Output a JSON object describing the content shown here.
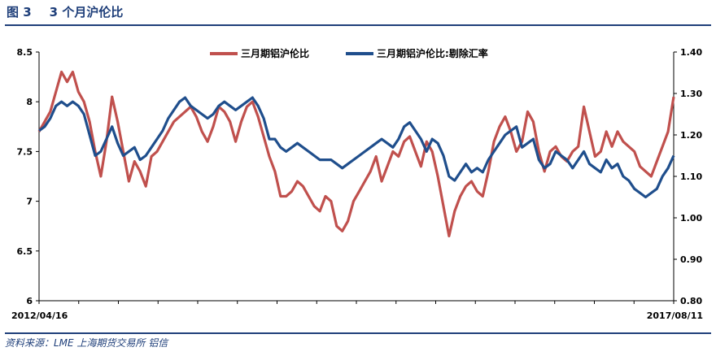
{
  "figure": {
    "label": "图 3",
    "number": "3",
    "title": "个月沪伦比"
  },
  "source": "资料来源：LME   上海期货交易所   铝信",
  "chart_data": {
    "type": "line",
    "x_start": "2012/04/16",
    "x_end": "2017/08/11",
    "left_axis": {
      "ylim": [
        6,
        8.5
      ],
      "ticks": [
        "8.5",
        "8",
        "7.5",
        "7",
        "6.5",
        "6"
      ]
    },
    "right_axis": {
      "ylim": [
        0.8,
        1.4
      ],
      "ticks": [
        "1.40",
        "1.30",
        "1.20",
        "1.10",
        "1.00",
        "0.90",
        "0.80"
      ]
    },
    "legend_position": "top-center",
    "series": [
      {
        "name": "三月期铝沪伦比",
        "axis": "left",
        "color": "#c0504d",
        "values": [
          7.7,
          7.8,
          7.9,
          8.1,
          8.3,
          8.2,
          8.3,
          8.1,
          8.0,
          7.8,
          7.5,
          7.25,
          7.6,
          8.05,
          7.8,
          7.5,
          7.2,
          7.4,
          7.3,
          7.15,
          7.45,
          7.5,
          7.6,
          7.7,
          7.8,
          7.85,
          7.9,
          7.95,
          7.85,
          7.7,
          7.6,
          7.75,
          7.95,
          7.9,
          7.8,
          7.6,
          7.8,
          7.95,
          8.0,
          7.85,
          7.65,
          7.45,
          7.3,
          7.05,
          7.05,
          7.1,
          7.2,
          7.15,
          7.05,
          6.95,
          6.9,
          7.05,
          7.0,
          6.75,
          6.7,
          6.8,
          7.0,
          7.1,
          7.2,
          7.3,
          7.45,
          7.2,
          7.35,
          7.5,
          7.45,
          7.6,
          7.65,
          7.5,
          7.35,
          7.6,
          7.5,
          7.25,
          6.95,
          6.65,
          6.9,
          7.05,
          7.15,
          7.2,
          7.1,
          7.05,
          7.3,
          7.6,
          7.75,
          7.85,
          7.7,
          7.5,
          7.6,
          7.9,
          7.8,
          7.5,
          7.3,
          7.5,
          7.55,
          7.45,
          7.4,
          7.5,
          7.55,
          7.95,
          7.7,
          7.45,
          7.5,
          7.7,
          7.55,
          7.7,
          7.6,
          7.55,
          7.5,
          7.35,
          7.3,
          7.25,
          7.4,
          7.55,
          7.7,
          8.05
        ]
      },
      {
        "name": "三月期铝沪伦比:剔除汇率",
        "axis": "right",
        "color": "#1f4e8c",
        "values": [
          1.21,
          1.22,
          1.24,
          1.27,
          1.28,
          1.27,
          1.28,
          1.27,
          1.25,
          1.2,
          1.15,
          1.16,
          1.19,
          1.22,
          1.18,
          1.15,
          1.16,
          1.17,
          1.14,
          1.15,
          1.17,
          1.19,
          1.21,
          1.24,
          1.26,
          1.28,
          1.29,
          1.27,
          1.26,
          1.25,
          1.24,
          1.25,
          1.27,
          1.28,
          1.27,
          1.26,
          1.27,
          1.28,
          1.29,
          1.27,
          1.24,
          1.19,
          1.19,
          1.17,
          1.16,
          1.17,
          1.18,
          1.17,
          1.16,
          1.15,
          1.14,
          1.14,
          1.14,
          1.13,
          1.12,
          1.13,
          1.14,
          1.15,
          1.16,
          1.17,
          1.18,
          1.19,
          1.18,
          1.17,
          1.19,
          1.22,
          1.23,
          1.21,
          1.19,
          1.16,
          1.19,
          1.18,
          1.15,
          1.1,
          1.09,
          1.11,
          1.13,
          1.11,
          1.12,
          1.11,
          1.14,
          1.16,
          1.18,
          1.2,
          1.21,
          1.22,
          1.17,
          1.18,
          1.19,
          1.14,
          1.12,
          1.13,
          1.16,
          1.15,
          1.14,
          1.12,
          1.14,
          1.16,
          1.13,
          1.12,
          1.11,
          1.14,
          1.12,
          1.13,
          1.1,
          1.09,
          1.07,
          1.06,
          1.05,
          1.06,
          1.07,
          1.1,
          1.12,
          1.15
        ]
      }
    ]
  }
}
